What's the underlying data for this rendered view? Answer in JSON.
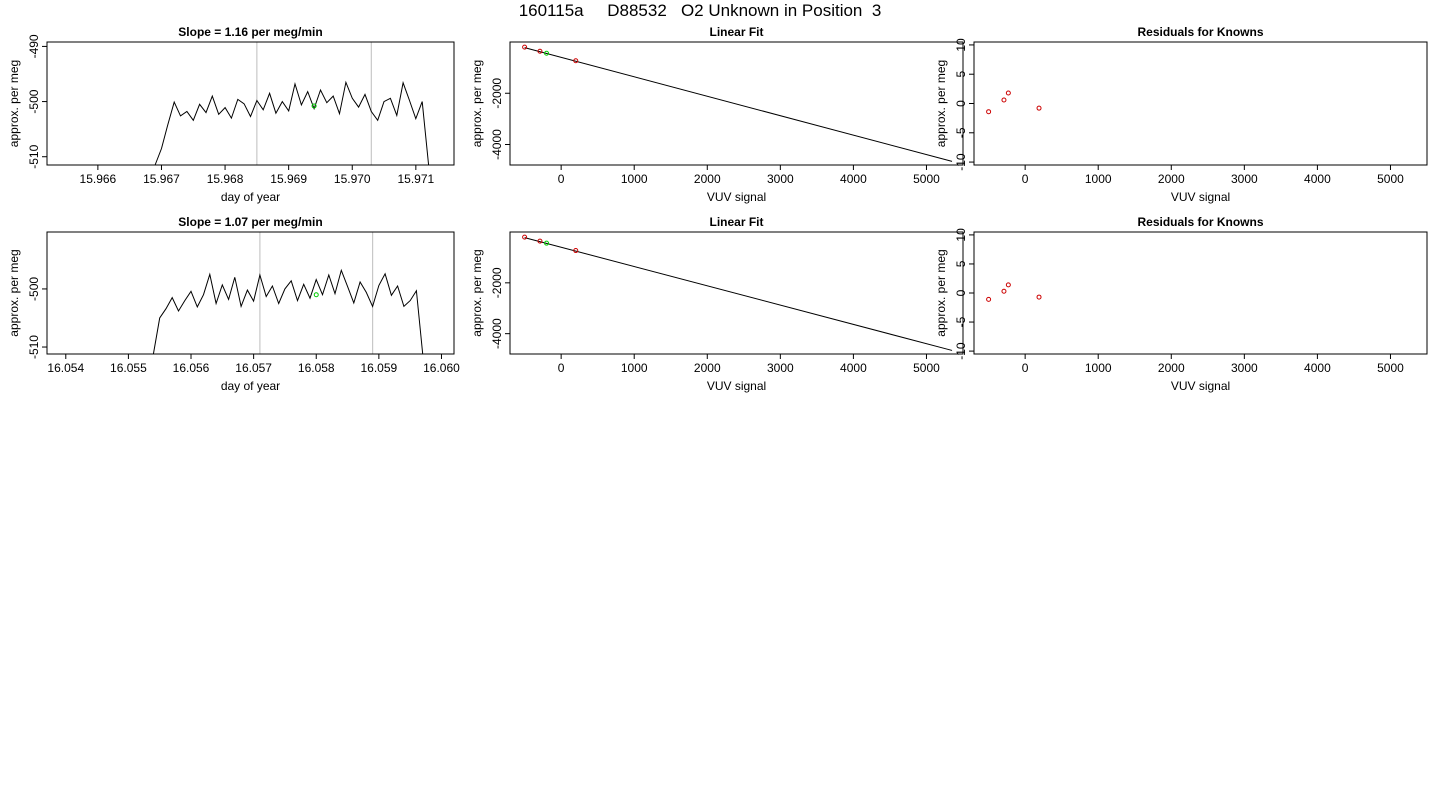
{
  "page": {
    "title": "160115a     D88532   O2 Unknown in Position  3"
  },
  "chart_data": [
    {
      "type": "line",
      "title": "Slope =  1.16  per meg/min",
      "xlabel": "day of year",
      "ylabel": "approx. per meg",
      "xlim": [
        15.9652,
        15.9716
      ],
      "ylim": [
        -511.5,
        -489.2
      ],
      "x_ticks": [
        "15.966",
        "15.967",
        "15.968",
        "15.969",
        "15.970",
        "15.971"
      ],
      "y_ticks": [
        "-490",
        "-500",
        "-510"
      ],
      "reference_lines_x": [
        15.9685,
        15.9703
      ],
      "series": [
        {
          "color": "#000000",
          "x": [
            15.9669,
            15.967,
            15.9671,
            15.9672,
            15.9673,
            15.9674,
            15.9675,
            15.9676,
            15.9677,
            15.9678,
            15.9679,
            15.968,
            15.9681,
            15.9682,
            15.9683,
            15.9684,
            15.9685,
            15.9686,
            15.9687,
            15.9688,
            15.9689,
            15.969,
            15.9691,
            15.9692,
            15.9693,
            15.9694,
            15.9695,
            15.9696,
            15.9697,
            15.9698,
            15.9699,
            15.97,
            15.9701,
            15.9702,
            15.9703,
            15.9704,
            15.9705,
            15.9706,
            15.9707,
            15.9708,
            15.9709,
            15.971,
            15.9711,
            15.9712
          ],
          "y": [
            -511.5,
            -508.5,
            -504.2,
            -500.1,
            -502.6,
            -501.8,
            -503.4,
            -500.5,
            -502.0,
            -499.0,
            -502.3,
            -501.1,
            -503.0,
            -499.6,
            -500.4,
            -502.7,
            -499.8,
            -501.5,
            -498.5,
            -502.1,
            -500.0,
            -501.7,
            -496.8,
            -500.6,
            -498.2,
            -501.3,
            -497.9,
            -500.2,
            -499.0,
            -502.2,
            -496.5,
            -499.4,
            -501.0,
            -498.7,
            -501.8,
            -503.4,
            -500.0,
            -499.4,
            -502.5,
            -496.6,
            -499.8,
            -503.1,
            -500.0,
            -511.5
          ]
        }
      ],
      "points": [
        {
          "x": 15.9694,
          "y": -500.8,
          "color": "#00cc00"
        }
      ]
    },
    {
      "type": "scatter",
      "title": "Linear Fit",
      "xlabel": "VUV signal",
      "ylabel": "approx. per meg",
      "xlim": [
        -700,
        5500
      ],
      "ylim": [
        -4800,
        0
      ],
      "x_ticks": [
        "0",
        "1000",
        "2000",
        "3000",
        "4000",
        "5000"
      ],
      "y_ticks": [
        "-2000",
        "-4000"
      ],
      "fit_line": {
        "x": [
          -500,
          5350
        ],
        "y": [
          -220,
          -4660
        ]
      },
      "points": [
        {
          "x": -500,
          "y": -200,
          "color": "#cc0000"
        },
        {
          "x": -290,
          "y": -360,
          "color": "#cc0000"
        },
        {
          "x": -200,
          "y": -440,
          "color": "#00cc00"
        },
        {
          "x": 200,
          "y": -730,
          "color": "#cc0000"
        }
      ]
    },
    {
      "type": "scatter",
      "title": "Residuals for Knowns",
      "xlabel": "VUV signal",
      "ylabel": "approx. per meg",
      "xlim": [
        -700,
        5500
      ],
      "ylim": [
        -10.5,
        10.5
      ],
      "x_ticks": [
        "0",
        "1000",
        "2000",
        "3000",
        "4000",
        "5000"
      ],
      "y_ticks": [
        "10",
        "5",
        "0",
        "-5",
        "-10"
      ],
      "points": [
        {
          "x": -500,
          "y": -1.4,
          "color": "#cc0000"
        },
        {
          "x": -290,
          "y": 0.6,
          "color": "#cc0000"
        },
        {
          "x": -230,
          "y": 1.8,
          "color": "#cc0000"
        },
        {
          "x": 190,
          "y": -0.8,
          "color": "#cc0000"
        }
      ]
    },
    {
      "type": "line",
      "title": "Slope =  1.07  per meg/min",
      "xlabel": "day of year",
      "ylabel": "approx. per meg",
      "xlim": [
        16.0537,
        16.0602
      ],
      "ylim": [
        -511.2,
        -490.2
      ],
      "x_ticks": [
        "16.054",
        "16.055",
        "16.056",
        "16.057",
        "16.058",
        "16.059",
        "16.060"
      ],
      "y_ticks": [
        "-500",
        "-510"
      ],
      "reference_lines_x": [
        16.0571,
        16.0589
      ],
      "series": [
        {
          "color": "#000000",
          "x": [
            16.0554,
            16.0555,
            16.0556,
            16.0557,
            16.0558,
            16.0559,
            16.056,
            16.0561,
            16.0562,
            16.0563,
            16.0564,
            16.0565,
            16.0566,
            16.0567,
            16.0568,
            16.0569,
            16.057,
            16.0571,
            16.0572,
            16.0573,
            16.0574,
            16.0575,
            16.0576,
            16.0577,
            16.0578,
            16.0579,
            16.058,
            16.0581,
            16.0582,
            16.0583,
            16.0584,
            16.0585,
            16.0586,
            16.0587,
            16.0588,
            16.0589,
            16.059,
            16.0591,
            16.0592,
            16.0593,
            16.0594,
            16.0595,
            16.0596,
            16.0597
          ],
          "y": [
            -511.2,
            -505.0,
            -503.4,
            -501.5,
            -503.8,
            -502.0,
            -500.4,
            -503.1,
            -501.0,
            -497.5,
            -502.5,
            -499.3,
            -501.8,
            -498.0,
            -503.0,
            -500.2,
            -502.1,
            -497.6,
            -501.3,
            -499.5,
            -502.5,
            -500.0,
            -498.6,
            -502.0,
            -499.2,
            -501.6,
            -498.4,
            -501.0,
            -497.6,
            -500.8,
            -496.8,
            -499.6,
            -502.4,
            -498.8,
            -500.6,
            -503.0,
            -499.4,
            -497.4,
            -501.1,
            -499.5,
            -503.0,
            -502.0,
            -500.3,
            -511.2
          ]
        }
      ],
      "points": [
        {
          "x": 16.058,
          "y": -501.0,
          "color": "#00cc00"
        }
      ]
    },
    {
      "type": "scatter",
      "title": "Linear Fit",
      "xlabel": "VUV signal",
      "ylabel": "approx. per meg",
      "xlim": [
        -700,
        5500
      ],
      "ylim": [
        -4800,
        0
      ],
      "x_ticks": [
        "0",
        "1000",
        "2000",
        "3000",
        "4000",
        "5000"
      ],
      "y_ticks": [
        "-2000",
        "-4000"
      ],
      "fit_line": {
        "x": [
          -500,
          5350
        ],
        "y": [
          -220,
          -4660
        ]
      },
      "points": [
        {
          "x": -500,
          "y": -200,
          "color": "#cc0000"
        },
        {
          "x": -290,
          "y": -360,
          "color": "#cc0000"
        },
        {
          "x": -200,
          "y": -440,
          "color": "#00cc00"
        },
        {
          "x": 200,
          "y": -730,
          "color": "#cc0000"
        }
      ]
    },
    {
      "type": "scatter",
      "title": "Residuals for Knowns",
      "xlabel": "VUV signal",
      "ylabel": "approx. per meg",
      "xlim": [
        -700,
        5500
      ],
      "ylim": [
        -10.5,
        10.5
      ],
      "x_ticks": [
        "0",
        "1000",
        "2000",
        "3000",
        "4000",
        "5000"
      ],
      "y_ticks": [
        "10",
        "5",
        "0",
        "-5",
        "-10"
      ],
      "points": [
        {
          "x": -500,
          "y": -1.1,
          "color": "#cc0000"
        },
        {
          "x": -290,
          "y": 0.3,
          "color": "#cc0000"
        },
        {
          "x": -230,
          "y": 1.4,
          "color": "#cc0000"
        },
        {
          "x": 190,
          "y": -0.7,
          "color": "#cc0000"
        }
      ]
    }
  ]
}
